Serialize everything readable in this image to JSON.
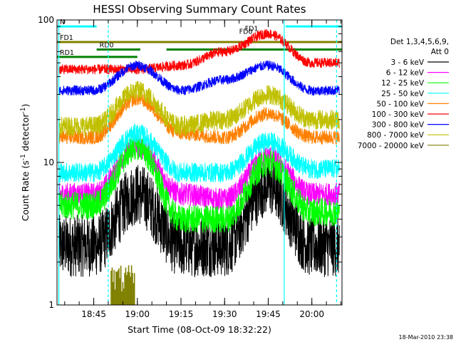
{
  "chart_data": {
    "type": "line",
    "title": "HESSI Observing Summary Count Rates",
    "xlabel": "Start Time (08-Oct-09 18:32:22)",
    "ylabel": "Count Rate (s",
    "ylabel_sup": "-1",
    "ylabel_tail": " detector",
    "ylabel_sup2": "-1",
    "ylabel_end": ")",
    "y_scale": "log",
    "ylim": [
      1,
      100
    ],
    "xlim": [
      "18:32:22",
      "20:10:22"
    ],
    "x_ticks": [
      "18:45",
      "19:00",
      "19:15",
      "19:30",
      "19:45",
      "20:00"
    ],
    "y_ticks": [
      "1",
      "10",
      "100"
    ],
    "legend_header_1": "Det 1,3,4,5,6,9,",
    "legend_header_2": "Att 0",
    "legend_position": "right",
    "grid": false,
    "series": [
      {
        "name": "3 - 6 keV",
        "color": "#000000",
        "values_at_x_ticks": [
          2.6,
          6.0,
          2.6,
          2.6,
          7.0,
          2.6
        ]
      },
      {
        "name": "6 - 12 keV",
        "color": "#ff00ff",
        "values_at_x_ticks": [
          6.0,
          13.0,
          6.0,
          5.5,
          11.0,
          6.0
        ]
      },
      {
        "name": "12 - 25 keV",
        "color": "#00ff00",
        "values_at_x_ticks": [
          5.0,
          13.0,
          4.0,
          4.0,
          10.0,
          4.5
        ]
      },
      {
        "name": "25 - 50 keV",
        "color": "#00ffff",
        "values_at_x_ticks": [
          8.5,
          16.0,
          8.5,
          8.5,
          14.0,
          9.0
        ]
      },
      {
        "name": "50 - 100 keV",
        "color": "#ff8000",
        "values_at_x_ticks": [
          15.0,
          28.0,
          16.0,
          15.0,
          22.0,
          15.0
        ]
      },
      {
        "name": "100 - 300 keV",
        "color": "#ff0000",
        "values_at_x_ticks": [
          45.0,
          45.0,
          48.0,
          60.0,
          80.0,
          50.0
        ]
      },
      {
        "name": "300 - 800 keV",
        "color": "#0000ff",
        "values_at_x_ticks": [
          32.0,
          48.0,
          32.0,
          38.0,
          48.0,
          32.0
        ]
      },
      {
        "name": "800 - 7000 keV",
        "color": "#c0c000",
        "values_at_x_ticks": [
          18.0,
          32.0,
          18.0,
          20.0,
          30.0,
          20.0
        ]
      },
      {
        "name": "7000 - 20000 keV",
        "color": "#808000",
        "values_at_x_ticks": [
          1.0,
          1.9,
          1.0,
          1.0,
          1.0,
          1.0
        ]
      }
    ],
    "flag_bars": [
      {
        "label": "N",
        "color": "#00ffff",
        "level": 90,
        "x_start": "18:32:22",
        "x_end": "18:46:00"
      },
      {
        "label": "",
        "color": "#00ffff",
        "level": 90,
        "x_start": "19:51:00",
        "x_end": "20:10:22"
      },
      {
        "label": "FD1",
        "color": "#808000",
        "level": 70,
        "x_start": "18:32:22",
        "x_end": "20:10:22"
      },
      {
        "label": "RD0",
        "color": "#008000",
        "level": 62,
        "x_start": "18:46:00",
        "x_end": "19:01:00"
      },
      {
        "label": "RD1",
        "color": "#008000",
        "level": 55,
        "x_start": "18:32:22",
        "x_end": "19:00:00"
      },
      {
        "label": "",
        "color": "#008000",
        "level": 62,
        "x_start": "19:10:00",
        "x_end": "20:10:22"
      }
    ],
    "flag_labels": [
      "FD0",
      "FD1"
    ],
    "vertical_markers": [
      {
        "x": "18:33:00",
        "color": "#00ffff",
        "style": "solid"
      },
      {
        "x": "18:50:00",
        "color": "#00ffff",
        "style": "dashed"
      },
      {
        "x": "19:50:30",
        "color": "#00ffff",
        "style": "solid"
      },
      {
        "x": "20:08:30",
        "color": "#00ffff",
        "style": "dashed"
      }
    ]
  },
  "footer_stamp": "18-Mar-2010 23:38"
}
